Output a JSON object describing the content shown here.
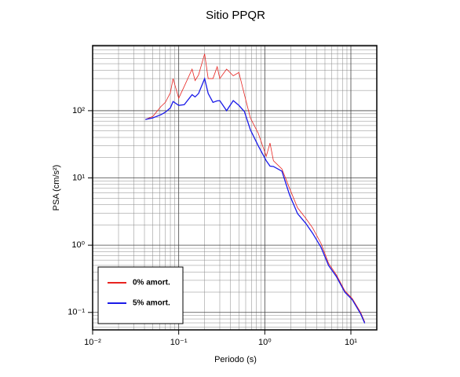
{
  "chart_data": {
    "type": "line",
    "title": "Sitio PPQR",
    "x_label": "Periodo (s)",
    "y_label": "PSA (cm/s²)",
    "x": [
      0.041,
      0.05,
      0.062,
      0.07,
      0.08,
      0.086,
      0.1,
      0.116,
      0.143,
      0.155,
      0.17,
      0.2,
      0.22,
      0.25,
      0.28,
      0.3,
      0.36,
      0.43,
      0.5,
      0.58,
      0.68,
      0.84,
      1.04,
      1.15,
      1.26,
      1.58,
      1.94,
      2.4,
      3.0,
      3.6,
      4.5,
      5.5,
      6.8,
      8.5,
      10.4,
      13,
      14.5
    ],
    "series": [
      {
        "name": "0% amort.",
        "color": "#e8231f",
        "values": [
          74,
          82,
          115,
          133,
          185,
          300,
          153,
          230,
          415,
          280,
          340,
          700,
          300,
          300,
          450,
          300,
          415,
          330,
          370,
          173,
          78,
          46,
          21,
          33,
          18,
          13.6,
          7,
          3.6,
          2.5,
          1.8,
          1.06,
          0.54,
          0.36,
          0.21,
          0.16,
          0.1,
          0.072
        ]
      },
      {
        "name": "5% amort.",
        "color": "#1a1ae8",
        "values": [
          74,
          78,
          87,
          95,
          110,
          137,
          120,
          123,
          173,
          160,
          180,
          300,
          180,
          133,
          140,
          141,
          100,
          141,
          120,
          97,
          52,
          30,
          18,
          15,
          14.8,
          12.6,
          5.6,
          2.95,
          2.1,
          1.5,
          0.93,
          0.5,
          0.34,
          0.2,
          0.154,
          0.095,
          0.069
        ]
      }
    ],
    "xscale": "log",
    "yscale": "log",
    "xlim": [
      0.01,
      20
    ],
    "ylim": [
      0.055,
      930
    ],
    "xticks": [
      {
        "value": 0.01,
        "label": "10⁻²"
      },
      {
        "value": 0.1,
        "label": "10⁻¹"
      },
      {
        "value": 1,
        "label": "10⁰"
      },
      {
        "value": 10,
        "label": "10¹"
      }
    ],
    "yticks": [
      {
        "value": 0.1,
        "label": "10⁻¹"
      },
      {
        "value": 1,
        "label": "10⁰"
      },
      {
        "value": 10,
        "label": "10¹"
      },
      {
        "value": 100,
        "label": "10²"
      }
    ],
    "grid": true,
    "minor_grid": true,
    "legend": "lower left"
  }
}
